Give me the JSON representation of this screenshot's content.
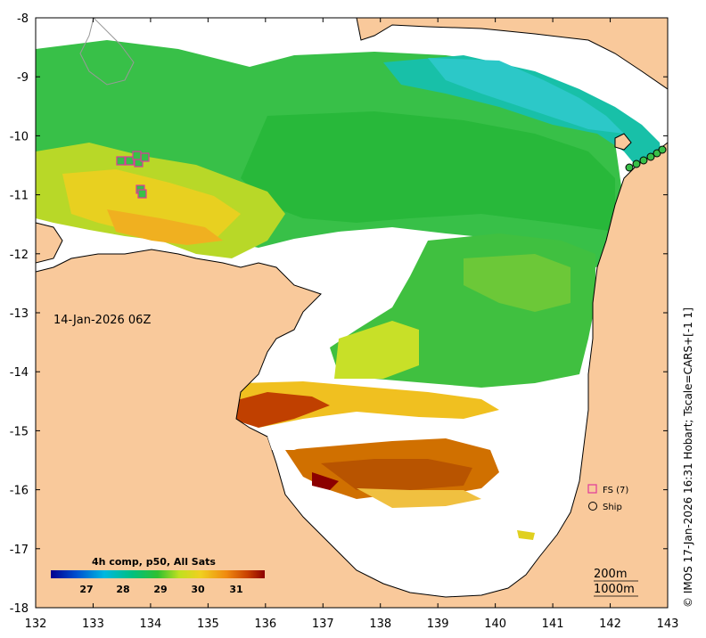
{
  "axes": {
    "x_ticks": [
      "132",
      "133",
      "134",
      "135",
      "136",
      "137",
      "138",
      "139",
      "140",
      "141",
      "142",
      "143"
    ],
    "y_ticks": [
      "-8",
      "-9",
      "-10",
      "-11",
      "-12",
      "-13",
      "-14",
      "-15",
      "-16",
      "-17",
      "-18"
    ]
  },
  "timestamp": "14-Jan-2026 06Z",
  "colorbar": {
    "title": "4h comp, p50, All Sats",
    "ticks": [
      "27",
      "28",
      "29",
      "30",
      "31"
    ]
  },
  "legend": {
    "fs_label": "FS (7)",
    "ship_label": "Ship"
  },
  "contours": {
    "line1": "200m",
    "line2": "1000m"
  },
  "credit": "© IMOS 17-Jan-2026 16:31 Hobart; Tscale=CARS+[-1 1]",
  "colors": {
    "land": "#f9c99b",
    "ocean_missing": "#ffffff",
    "fs_marker": "#e0399a"
  }
}
